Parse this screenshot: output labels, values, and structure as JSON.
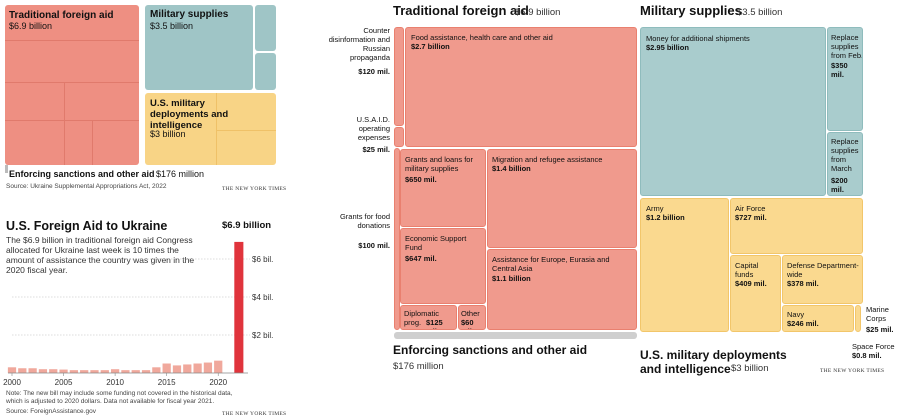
{
  "small_treemap": {
    "traditional": {
      "label": "Traditional foreign aid",
      "value": "$6.9 billion"
    },
    "military": {
      "label": "Military supplies",
      "value": "$3.5 billion"
    },
    "deployments": {
      "label": "U.S. military deployments and intelligence",
      "value": "$3 billion"
    },
    "sanctions": {
      "label": "Enforcing sanctions and other aid",
      "value": "$176 million"
    },
    "source": "Source: Ukraine Supplemental Appropriations Act, 2022",
    "credit": "THE NEW YORK TIMES"
  },
  "bar_panel": {
    "title": "U.S. Foreign Aid to Ukraine",
    "description": "The $6.9 billion in traditional foreign aid Congress allocated for Ukraine last week is 10 times the amount of assistance the country was given in the 2020 fiscal year.",
    "highlight_label": "$6.9 billion",
    "note": "Note: The new bill may include some funding not covered in the historical data, which is adjusted to 2020 dollars. Data not available for fiscal year 2021.",
    "source": "Source: ForeignAssistance.gov",
    "credit": "THE NEW YORK TIMES",
    "colors": {
      "history": "#f0a89c",
      "highlight": "#e0343c"
    }
  },
  "chart_data": {
    "type": "bar",
    "title": "U.S. Foreign Aid to Ukraine",
    "x": [
      2000,
      2001,
      2002,
      2003,
      2004,
      2005,
      2006,
      2007,
      2008,
      2009,
      2010,
      2011,
      2012,
      2013,
      2014,
      2015,
      2016,
      2017,
      2018,
      2019,
      2020,
      2022
    ],
    "values": [
      0.3,
      0.25,
      0.25,
      0.2,
      0.2,
      0.18,
      0.15,
      0.15,
      0.15,
      0.15,
      0.2,
      0.15,
      0.15,
      0.15,
      0.3,
      0.5,
      0.4,
      0.45,
      0.5,
      0.55,
      0.65,
      6.9
    ],
    "x_ticks": [
      "2000",
      "2005",
      "2010",
      "2015",
      "2020"
    ],
    "y_ticks": [
      "$2 bil.",
      "$4 bil.",
      "$6 bil."
    ],
    "ylim": [
      0,
      7
    ],
    "grid": true
  },
  "big_treemap": {
    "traditional_header": {
      "label": "Traditional foreign aid",
      "value": "$6.9 billion"
    },
    "military_header": {
      "label": "Military supplies",
      "value": "$3.5 billion"
    },
    "sanctions_footer": {
      "label": "Enforcing sanctions and other aid",
      "value": "$176 million"
    },
    "deployments_footer": {
      "label_line1": "U.S. military deployments",
      "label_line2": "and intelligence",
      "value": "$3 billion"
    },
    "credit": "THE NEW YORK TIMES",
    "left_labels": [
      {
        "text": "Counter disinformation and Russian propaganda",
        "value": "$120 mil."
      },
      {
        "text": "U.S.A.I.D. operating expenses",
        "value": "$25 mil."
      },
      {
        "text": "Grants for food donations",
        "value": "$100 mil."
      }
    ],
    "red_tiles": {
      "food": {
        "label": "Food assistance, health care and other aid",
        "value": "$2.7 billion"
      },
      "grants_military": {
        "label": "Grants and loans for military supplies",
        "value": "$650 mil."
      },
      "migration": {
        "label": "Migration and refugee assistance",
        "value": "$1.4 billion"
      },
      "esf": {
        "label": "Economic Support Fund",
        "value": "$647 mil."
      },
      "europe": {
        "label": "Assistance for Europe, Eurasia and Central Asia",
        "value": "$1.1 billion"
      },
      "diplomatic": {
        "label": "Diplomatic prog.",
        "value": "$125 mil."
      },
      "other": {
        "label": "Other",
        "value": "$60 mil."
      }
    },
    "teal_tiles": {
      "money": {
        "label": "Money for additional shipments",
        "value": "$2.95 billion"
      },
      "replace_feb": {
        "label": "Replace supplies from Feb.",
        "value": "$350 mil."
      },
      "replace_march": {
        "label": "Replace supplies from March",
        "value": "$200 mil."
      }
    },
    "yellow_tiles": {
      "army": {
        "label": "Army",
        "value": "$1.2 billion"
      },
      "airforce": {
        "label": "Air Force",
        "value": "$727 mil."
      },
      "capital": {
        "label": "Capital funds",
        "value": "$409 mil."
      },
      "defense": {
        "label": "Defense Department-wide",
        "value": "$378 mil."
      },
      "navy": {
        "label": "Navy",
        "value": "$246 mil."
      }
    },
    "outside_labels": {
      "marine": {
        "label": "Marine Corps",
        "value": "$25 mil."
      },
      "space": {
        "label": "Space Force",
        "value": "$0.8 mil."
      }
    }
  }
}
